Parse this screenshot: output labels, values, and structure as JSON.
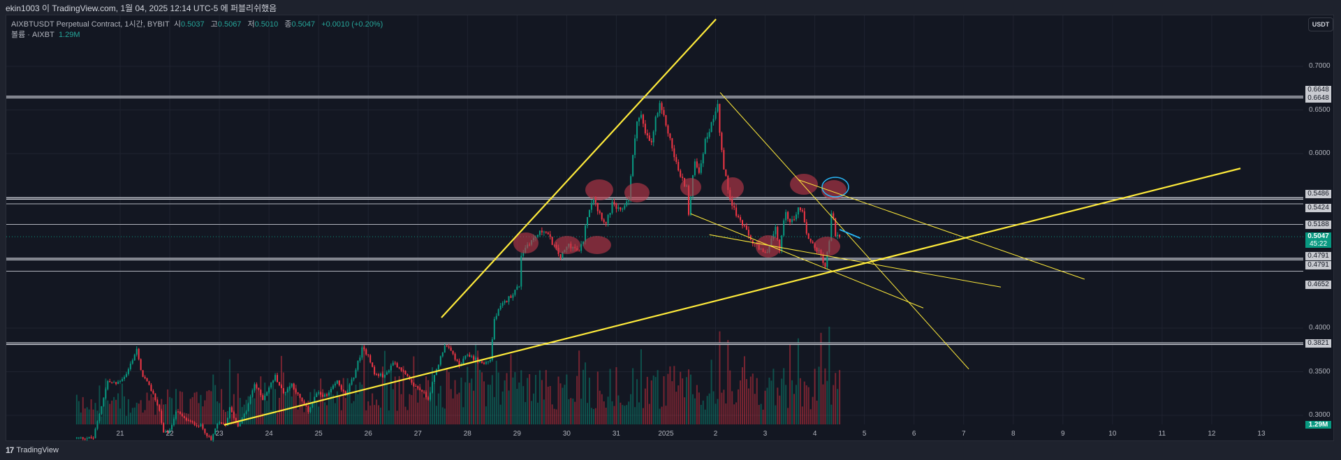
{
  "header": {
    "published": "ekin1003 이 TradingView.com, 1월 04, 2025 12:14 UTC-5 에 퍼블리쉬했음"
  },
  "legend": {
    "symbol": "AIXBTUSDT Perpetual Contract, 1시간, BYBIT",
    "open_label": "시",
    "open": "0.5037",
    "high_label": "고",
    "high": "0.5067",
    "low_label": "저",
    "low": "0.5010",
    "close_label": "종",
    "close": "0.5047",
    "change": "+0.0010 (+0.20%)",
    "volume_label": "볼륨 · AIXBT",
    "volume": "1.29M"
  },
  "axis": {
    "currency_button": "USDT",
    "price_ticks": [
      "0.7000",
      "0.6500",
      "0.6000",
      "0.4000",
      "0.3500",
      "0.3000"
    ],
    "level_labels": [
      "0.6648",
      "0.6648",
      "0.5486",
      "0.5424",
      "0.5188",
      "0.4791",
      "0.4791",
      "0.4652",
      "0.3821"
    ],
    "current_price": "0.5047",
    "countdown": "45:22",
    "volume_badge": "1.29M",
    "dates": [
      "21",
      "22",
      "23",
      "24",
      "25",
      "26",
      "27",
      "28",
      "29",
      "30",
      "31",
      "2025",
      "2",
      "3",
      "4",
      "5",
      "6",
      "7",
      "8",
      "9",
      "10",
      "11",
      "12",
      "13"
    ]
  },
  "footer": {
    "logo_text": "TradingView",
    "logo_mark": "17"
  },
  "colors": {
    "up": "#089981",
    "down": "#f23645",
    "trend": "#ffeb3b",
    "level": "#d1d4dc",
    "highlight": "#c2394a",
    "cyan": "#29b6f6"
  },
  "chart_data": {
    "type": "candlestick",
    "title": "AIXBTUSDT Perpetual Contract, 1시간, BYBIT",
    "x_unit": "hours since Dec 20 00:00",
    "ylim": [
      0.27,
      0.72
    ],
    "close_keyframes": [
      [
        11,
        0.274
      ],
      [
        14,
        0.302
      ],
      [
        18,
        0.339
      ],
      [
        22,
        0.336
      ],
      [
        27,
        0.347
      ],
      [
        32,
        0.376
      ],
      [
        34,
        0.35
      ],
      [
        38,
        0.333
      ],
      [
        40,
        0.325
      ],
      [
        43,
        0.305
      ],
      [
        45,
        0.279
      ],
      [
        48,
        0.282
      ],
      [
        51,
        0.305
      ],
      [
        55,
        0.296
      ],
      [
        59,
        0.291
      ],
      [
        63,
        0.288
      ],
      [
        68,
        0.271
      ],
      [
        71,
        0.291
      ],
      [
        75,
        0.288
      ],
      [
        77,
        0.308
      ],
      [
        81,
        0.288
      ],
      [
        85,
        0.305
      ],
      [
        89,
        0.336
      ],
      [
        93,
        0.319
      ],
      [
        99,
        0.345
      ],
      [
        103,
        0.325
      ],
      [
        107,
        0.336
      ],
      [
        111,
        0.319
      ],
      [
        115,
        0.305
      ],
      [
        119,
        0.325
      ],
      [
        124,
        0.322
      ],
      [
        129,
        0.339
      ],
      [
        133,
        0.322
      ],
      [
        137,
        0.345
      ],
      [
        141,
        0.376
      ],
      [
        144,
        0.37
      ],
      [
        147,
        0.347
      ],
      [
        152,
        0.345
      ],
      [
        156,
        0.361
      ],
      [
        160,
        0.353
      ],
      [
        165,
        0.336
      ],
      [
        170,
        0.328
      ],
      [
        173,
        0.319
      ],
      [
        176,
        0.345
      ],
      [
        181,
        0.381
      ],
      [
        185,
        0.37
      ],
      [
        188,
        0.356
      ],
      [
        192,
        0.37
      ],
      [
        196,
        0.364
      ],
      [
        200,
        0.359
      ],
      [
        203,
        0.364
      ],
      [
        205,
        0.41
      ],
      [
        208,
        0.424
      ],
      [
        214,
        0.44
      ],
      [
        217,
        0.449
      ],
      [
        218,
        0.484
      ],
      [
        221,
        0.496
      ],
      [
        226,
        0.507
      ],
      [
        229,
        0.513
      ],
      [
        233,
        0.498
      ],
      [
        237,
        0.481
      ],
      [
        241,
        0.496
      ],
      [
        246,
        0.487
      ],
      [
        248,
        0.501
      ],
      [
        250,
        0.53
      ],
      [
        253,
        0.553
      ],
      [
        255,
        0.536
      ],
      [
        259,
        0.519
      ],
      [
        262,
        0.542
      ],
      [
        266,
        0.533
      ],
      [
        270,
        0.55
      ],
      [
        272,
        0.596
      ],
      [
        274,
        0.64
      ],
      [
        276,
        0.643
      ],
      [
        278,
        0.622
      ],
      [
        281,
        0.611
      ],
      [
        283,
        0.64
      ],
      [
        285,
        0.654
      ],
      [
        288,
        0.634
      ],
      [
        292,
        0.597
      ],
      [
        295,
        0.573
      ],
      [
        298,
        0.562
      ],
      [
        299,
        0.53
      ],
      [
        300,
        0.55
      ],
      [
        302,
        0.594
      ],
      [
        304,
        0.579
      ],
      [
        307,
        0.614
      ],
      [
        310,
        0.634
      ],
      [
        313,
        0.66
      ],
      [
        314,
        0.625
      ],
      [
        316,
        0.582
      ],
      [
        319,
        0.55
      ],
      [
        322,
        0.53
      ],
      [
        325,
        0.519
      ],
      [
        329,
        0.501
      ],
      [
        333,
        0.49
      ],
      [
        336,
        0.484
      ],
      [
        341,
        0.513
      ],
      [
        343,
        0.49
      ],
      [
        346,
        0.536
      ],
      [
        348,
        0.519
      ],
      [
        352,
        0.536
      ],
      [
        354,
        0.536
      ],
      [
        356,
        0.507
      ],
      [
        360,
        0.493
      ],
      [
        363,
        0.484
      ],
      [
        365,
        0.47
      ],
      [
        367,
        0.501
      ],
      [
        368,
        0.53
      ],
      [
        369,
        0.524
      ],
      [
        370,
        0.507
      ],
      [
        372,
        0.5047
      ]
    ],
    "levels": [
      {
        "price": 0.6648,
        "weight": "heavy"
      },
      {
        "price": 0.5486,
        "weight": "heavy"
      },
      {
        "price": 0.5424,
        "weight": "light"
      },
      {
        "price": 0.5188,
        "weight": "light"
      },
      {
        "price": 0.4791,
        "weight": "heavy"
      },
      {
        "price": 0.4652,
        "weight": "light"
      },
      {
        "price": 0.3821,
        "weight": "heavy"
      }
    ],
    "trendlines": [
      {
        "from": [
          179.4,
          0.412
        ],
        "to": [
          312.2,
          0.754
        ],
        "weight": "heavy"
      },
      {
        "from": [
          74.3,
          0.289
        ],
        "to": [
          565.9,
          0.583
        ],
        "weight": "heavy"
      },
      {
        "from": [
          314.2,
          0.67
        ],
        "to": [
          434.5,
          0.353
        ],
        "weight": "light"
      },
      {
        "from": [
          352,
          0.57
        ],
        "to": [
          490.5,
          0.456
        ],
        "weight": "light"
      },
      {
        "from": [
          300,
          0.531
        ],
        "to": [
          412.5,
          0.423
        ],
        "weight": "light"
      },
      {
        "from": [
          309,
          0.507
        ],
        "to": [
          450,
          0.447
        ],
        "weight": "light"
      }
    ],
    "cyan_line": {
      "from": [
        372,
        0.513
      ],
      "to": [
        382,
        0.503
      ]
    },
    "volume_max_label": "1.29M"
  }
}
